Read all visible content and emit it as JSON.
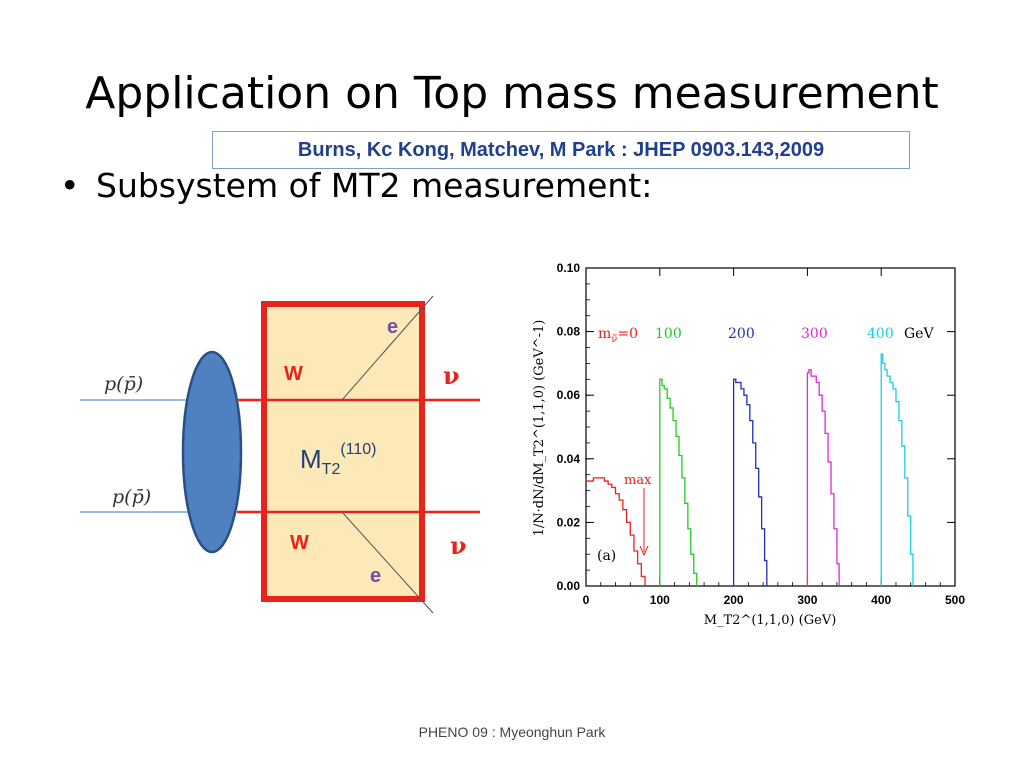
{
  "slide": {
    "title": "Application on Top mass measurement",
    "citation": "Burns, Kc Kong, Matchev, M Park : JHEP 0903.143,2009",
    "bullet": "Subsystem of MT2 measurement:",
    "bullet_marker": "•",
    "footer": "PHENO 09  : Myeonghun Park"
  },
  "diagram": {
    "beam_labels": [
      "p(p̄)",
      "p(p̄)"
    ],
    "w_top": "W",
    "w_bottom": "W",
    "e_top": "e",
    "e_bottom": "e",
    "nu_top": "ν",
    "nu_bottom": "ν",
    "mt2_main": "M",
    "mt2_sub": "T2",
    "mt2_sup": "(110)",
    "colors": {
      "box_fill": "#fde9b8",
      "box_border": "#e8231a",
      "blob": "#4f80c0",
      "wline": "#e8231a"
    }
  },
  "chart_data": {
    "type": "line",
    "title": "",
    "xlabel": "M_T2^(1,1,0)  (GeV)",
    "ylabel": "1/N·dN/dM_T2^(1,1,0)  (GeV^-1)",
    "xlim": [
      0,
      500
    ],
    "ylim": [
      0,
      0.1
    ],
    "xticks": [
      0,
      100,
      200,
      300,
      400,
      500
    ],
    "yticks": [
      "0.00",
      "0.02",
      "0.04",
      "0.06",
      "0.08",
      "0.10"
    ],
    "legend_prefix": "m",
    "legend_prefix_sub": "ν̃",
    "legend_suffix": "GeV",
    "panel_label": "(a)",
    "annotation": "max",
    "series": [
      {
        "name": "=0",
        "color": "#e8231a",
        "x": [
          0,
          5,
          10,
          15,
          20,
          25,
          30,
          35,
          40,
          45,
          50,
          55,
          60,
          65,
          70,
          75,
          80
        ],
        "y": [
          0.033,
          0.033,
          0.034,
          0.034,
          0.034,
          0.033,
          0.032,
          0.031,
          0.029,
          0.027,
          0.024,
          0.02,
          0.016,
          0.011,
          0.007,
          0.003,
          0.0
        ]
      },
      {
        "name": "100",
        "color": "#22cc22",
        "x": [
          100,
          100,
          103,
          106,
          110,
          114,
          118,
          122,
          126,
          130,
          134,
          138,
          142,
          146,
          150
        ],
        "y": [
          0,
          0.065,
          0.063,
          0.062,
          0.059,
          0.056,
          0.052,
          0.047,
          0.041,
          0.034,
          0.026,
          0.018,
          0.01,
          0.004,
          0.0
        ]
      },
      {
        "name": "200",
        "color": "#1f2fb8",
        "x": [
          200,
          200,
          203,
          206,
          210,
          214,
          218,
          222,
          226,
          230,
          234,
          238,
          242,
          245
        ],
        "y": [
          0,
          0.065,
          0.064,
          0.064,
          0.062,
          0.06,
          0.057,
          0.052,
          0.045,
          0.037,
          0.028,
          0.018,
          0.008,
          0.0
        ]
      },
      {
        "name": "300",
        "color": "#e026e0",
        "x": [
          300,
          300,
          302,
          305,
          308,
          312,
          316,
          320,
          324,
          328,
          332,
          336,
          340,
          343
        ],
        "y": [
          0,
          0.067,
          0.068,
          0.066,
          0.066,
          0.064,
          0.06,
          0.055,
          0.048,
          0.039,
          0.029,
          0.018,
          0.007,
          0.0
        ]
      },
      {
        "name": "400",
        "color": "#18d0e0",
        "x": [
          400,
          400,
          402,
          405,
          408,
          412,
          416,
          420,
          424,
          428,
          432,
          436,
          440,
          443
        ],
        "y": [
          0,
          0.073,
          0.07,
          0.068,
          0.066,
          0.064,
          0.062,
          0.058,
          0.052,
          0.044,
          0.034,
          0.022,
          0.01,
          0.0
        ]
      }
    ]
  }
}
